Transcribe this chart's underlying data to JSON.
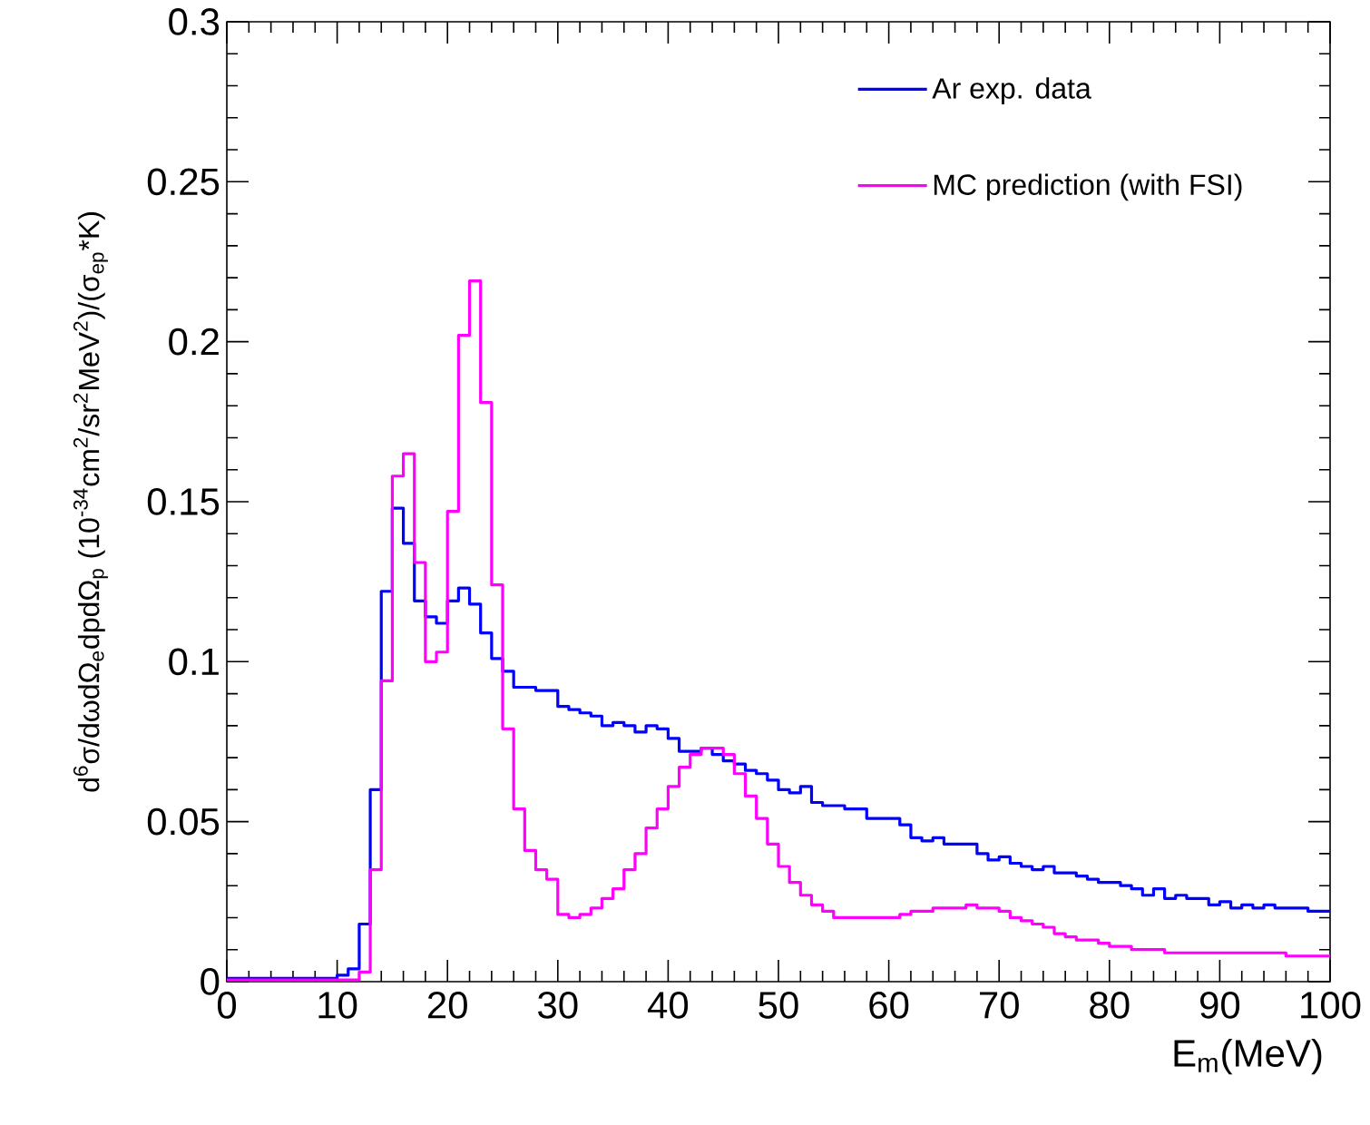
{
  "chart_data": {
    "type": "histogram",
    "xlabel": "E$_{m}$(MeV)",
    "ylabel": "d$^{6}$σ/dωdΩ$_{e}$dpdΩ$_{p}$ (10$^{-34}$cm$^{2}$/sr$^{2}$MeV$^{2}$)/(σ$_{ep}$*K)",
    "bins": [
      0,
      1,
      2,
      3,
      4,
      5,
      6,
      7,
      8,
      9,
      10,
      11,
      12,
      13,
      14,
      15,
      16,
      17,
      18,
      19,
      20,
      21,
      22,
      23,
      24,
      25,
      26,
      27,
      28,
      29,
      30,
      31,
      32,
      33,
      34,
      35,
      36,
      37,
      38,
      39,
      40,
      41,
      42,
      43,
      44,
      45,
      46,
      47,
      48,
      49,
      50,
      51,
      52,
      53,
      54,
      55,
      56,
      57,
      58,
      59,
      60,
      61,
      62,
      63,
      64,
      65,
      66,
      67,
      68,
      69,
      70,
      71,
      72,
      73,
      74,
      75,
      76,
      77,
      78,
      79,
      80,
      81,
      82,
      83,
      84,
      85,
      86,
      87,
      88,
      89,
      90,
      91,
      92,
      93,
      94,
      95,
      96,
      97,
      98,
      99,
      100
    ],
    "series": [
      {
        "name": "Ar exp. data",
        "color": "#0000ff",
        "values": [
          0.001,
          0.001,
          0.001,
          0.001,
          0.001,
          0.001,
          0.001,
          0.001,
          0.001,
          0.001,
          0.002,
          0.004,
          0.018,
          0.06,
          0.122,
          0.148,
          0.137,
          0.119,
          0.114,
          0.112,
          0.119,
          0.123,
          0.118,
          0.109,
          0.101,
          0.097,
          0.092,
          0.092,
          0.091,
          0.091,
          0.086,
          0.085,
          0.084,
          0.083,
          0.08,
          0.081,
          0.08,
          0.078,
          0.08,
          0.079,
          0.076,
          0.072,
          0.072,
          0.073,
          0.071,
          0.069,
          0.068,
          0.066,
          0.065,
          0.063,
          0.06,
          0.059,
          0.061,
          0.056,
          0.055,
          0.055,
          0.054,
          0.054,
          0.051,
          0.051,
          0.051,
          0.049,
          0.045,
          0.044,
          0.045,
          0.043,
          0.043,
          0.043,
          0.04,
          0.038,
          0.039,
          0.037,
          0.036,
          0.035,
          0.036,
          0.034,
          0.034,
          0.033,
          0.032,
          0.031,
          0.031,
          0.03,
          0.029,
          0.027,
          0.029,
          0.026,
          0.027,
          0.026,
          0.026,
          0.024,
          0.025,
          0.023,
          0.024,
          0.023,
          0.024,
          0.023,
          0.023,
          0.023,
          0.022,
          0.022
        ]
      },
      {
        "name": "MC prediction (with FSI)",
        "color": "#ff00ff",
        "values": [
          0.0005,
          0.0005,
          0.0005,
          0.0005,
          0.0005,
          0.0005,
          0.0005,
          0.0005,
          0.0005,
          0.0005,
          0.0005,
          0.0005,
          0.003,
          0.035,
          0.094,
          0.158,
          0.165,
          0.131,
          0.1,
          0.103,
          0.147,
          0.202,
          0.219,
          0.181,
          0.124,
          0.079,
          0.054,
          0.041,
          0.035,
          0.032,
          0.021,
          0.02,
          0.021,
          0.023,
          0.026,
          0.029,
          0.035,
          0.04,
          0.048,
          0.054,
          0.061,
          0.067,
          0.071,
          0.073,
          0.073,
          0.071,
          0.065,
          0.058,
          0.051,
          0.043,
          0.036,
          0.031,
          0.027,
          0.024,
          0.022,
          0.02,
          0.02,
          0.02,
          0.02,
          0.02,
          0.02,
          0.021,
          0.022,
          0.022,
          0.023,
          0.023,
          0.023,
          0.024,
          0.023,
          0.023,
          0.022,
          0.02,
          0.019,
          0.018,
          0.017,
          0.015,
          0.014,
          0.013,
          0.013,
          0.012,
          0.011,
          0.011,
          0.01,
          0.01,
          0.01,
          0.009,
          0.009,
          0.009,
          0.009,
          0.009,
          0.009,
          0.009,
          0.009,
          0.009,
          0.009,
          0.009,
          0.008,
          0.008,
          0.008,
          0.008
        ]
      }
    ],
    "xlim": [
      0,
      100
    ],
    "ylim": [
      0,
      0.3
    ],
    "xticks": [
      0,
      10,
      20,
      30,
      40,
      50,
      60,
      70,
      80,
      90,
      100
    ],
    "yticks": [
      0,
      0.05,
      0.1,
      0.15,
      0.2,
      0.25,
      0.3
    ],
    "grid": false,
    "legend": "top right"
  }
}
